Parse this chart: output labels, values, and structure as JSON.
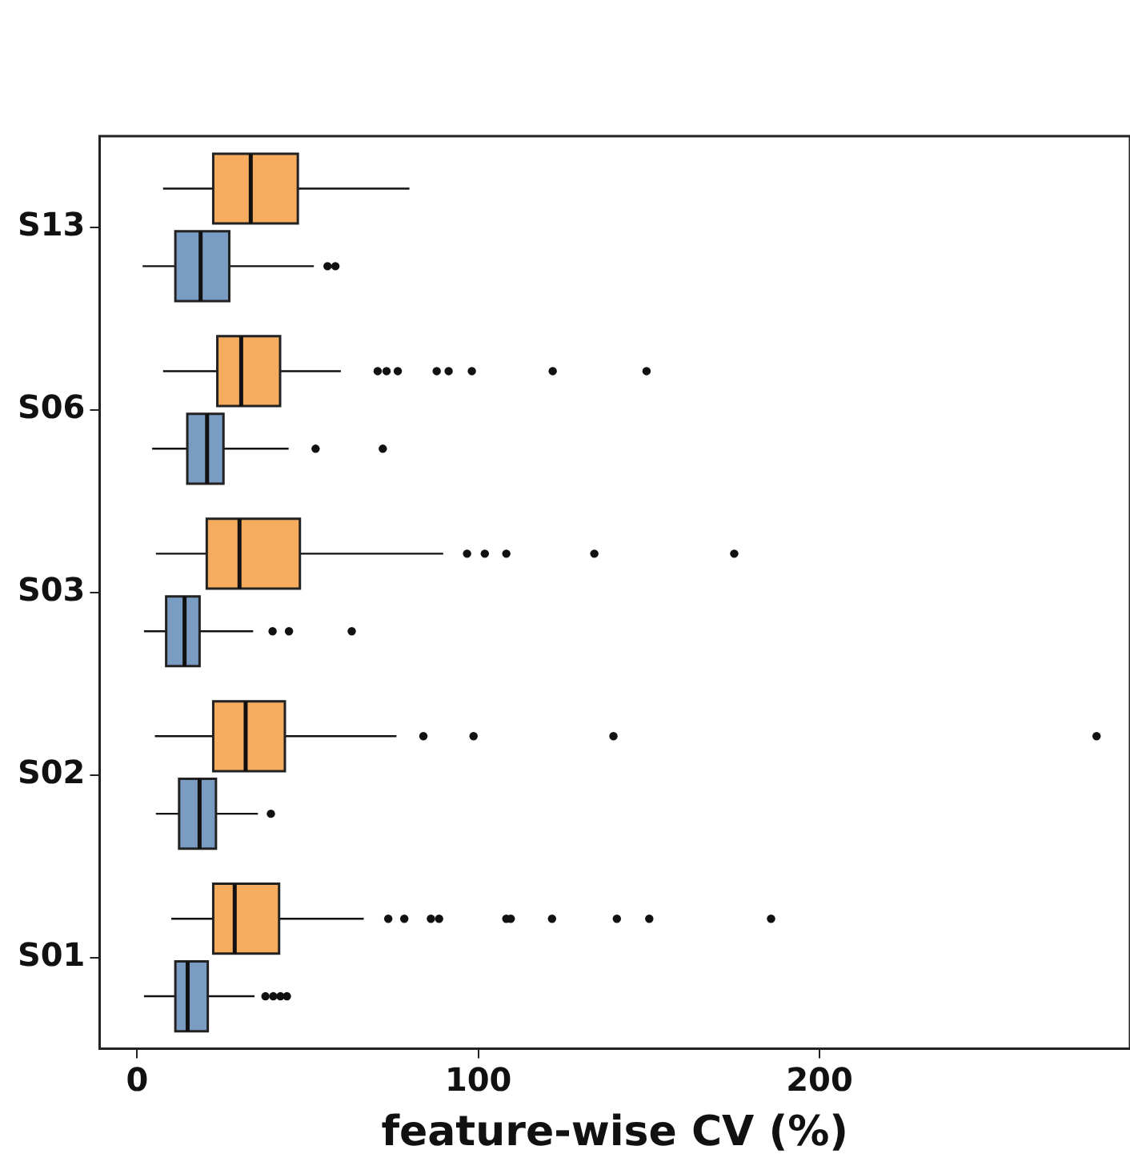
{
  "chart_data": {
    "type": "box",
    "xlabel": "feature-wise CV (%)",
    "categories": [
      "S13",
      "S06",
      "S03",
      "S02",
      "S01"
    ],
    "orientation": "horizontal",
    "xlim": [
      -11,
      291
    ],
    "xticks": [
      0,
      100,
      200
    ],
    "grid": false,
    "legend": false,
    "series": [
      {
        "color": "#f5ac5f",
        "boxes": [
          {
            "low": 7.6,
            "q1": 22.3,
            "median": 33.3,
            "q3": 47.1,
            "high": 79.8
          },
          {
            "low": 7.6,
            "q1": 23.5,
            "median": 30.5,
            "q3": 41.9,
            "high": 59.7,
            "outliers": [
              70.5,
              73.1,
              76.4,
              87.8,
              91.3,
              98.1,
              121.8,
              149.3
            ]
          },
          {
            "low": 5.5,
            "q1": 20.4,
            "median": 30.0,
            "q3": 47.7,
            "high": 89.7,
            "outliers": [
              96.7,
              101.9,
              108.2,
              134.0,
              175.0
            ]
          },
          {
            "low": 5.2,
            "q1": 22.3,
            "median": 31.8,
            "q3": 43.3,
            "high": 76.0,
            "outliers": [
              83.9,
              98.6,
              139.6,
              281.2
            ]
          },
          {
            "low": 10.0,
            "q1": 22.3,
            "median": 28.6,
            "q3": 41.6,
            "high": 66.4,
            "outliers": [
              73.6,
              78.3,
              86.1,
              88.5,
              108.2,
              109.5,
              121.6,
              140.6,
              150.1,
              185.8
            ]
          }
        ]
      },
      {
        "color": "#7b9cc2",
        "boxes": [
          {
            "low": 1.6,
            "q1": 11.2,
            "median": 18.6,
            "q3": 27.0,
            "high": 51.8,
            "outliers": [
              55.8,
              58.1
            ]
          },
          {
            "low": 4.4,
            "q1": 14.7,
            "median": 20.5,
            "q3": 25.3,
            "high": 44.4,
            "outliers": [
              52.3,
              72.0
            ]
          },
          {
            "low": 2.0,
            "q1": 8.5,
            "median": 13.9,
            "q3": 18.3,
            "high": 34.0,
            "outliers": [
              39.7,
              44.5,
              62.9
            ]
          },
          {
            "low": 5.5,
            "q1": 12.3,
            "median": 18.3,
            "q3": 23.1,
            "high": 35.4,
            "outliers": [
              39.2
            ]
          },
          {
            "low": 2.0,
            "q1": 11.2,
            "median": 14.8,
            "q3": 20.7,
            "high": 34.4,
            "outliers": [
              37.6,
              39.9,
              42.0,
              43.9
            ]
          }
        ]
      }
    ]
  }
}
